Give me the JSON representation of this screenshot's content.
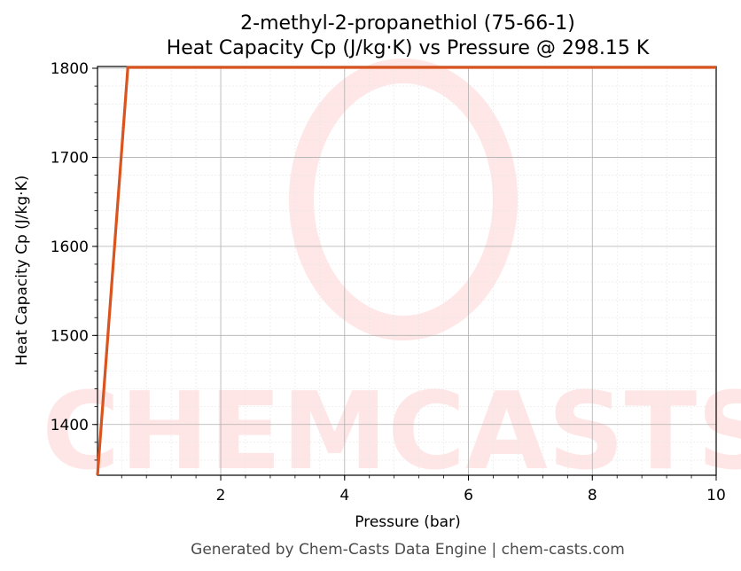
{
  "chart_data": {
    "type": "line",
    "title_line1": "2-methyl-2-propanethiol (75-66-1)",
    "title_line2": "Heat Capacity Cp (J/kg·K) vs Pressure @ 298.15 K",
    "xlabel": "Pressure (bar)",
    "ylabel": "Heat Capacity Cp (J/kg·K)",
    "xlim": [
      0.01,
      10
    ],
    "ylim": [
      1343,
      1802
    ],
    "x_ticks": [
      2,
      4,
      6,
      8,
      10
    ],
    "x_tick_labels": [
      "2",
      "4",
      "6",
      "8",
      "10"
    ],
    "y_ticks": [
      1400,
      1500,
      1600,
      1700,
      1800
    ],
    "y_tick_labels": [
      "1400",
      "1500",
      "1600",
      "1700",
      "1800"
    ],
    "grid": true,
    "series": [
      {
        "color": "#d9541e",
        "x": [
          0.01,
          0.5,
          10
        ],
        "y": [
          1343,
          1801,
          1801
        ]
      }
    ],
    "watermark": "CHEMCASTS"
  },
  "footer": "Generated by Chem-Casts Data Engine | chem-casts.com"
}
